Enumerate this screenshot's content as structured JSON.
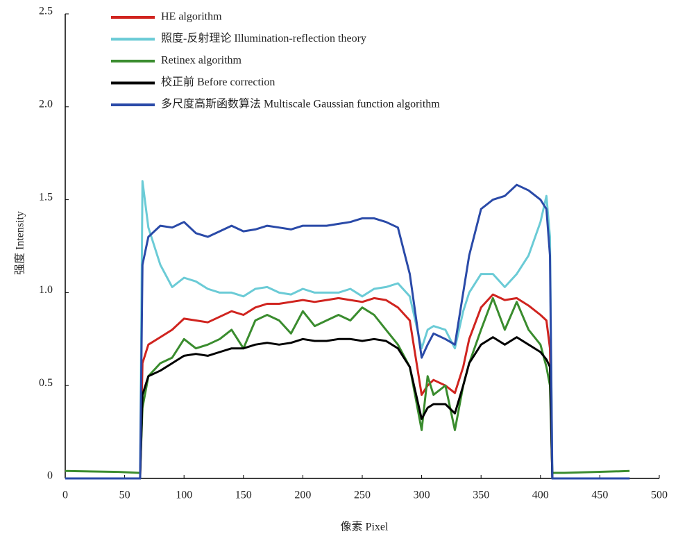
{
  "chart_data": {
    "type": "line",
    "xlabel": "像素 Pixel",
    "ylabel": "强度 Intensity",
    "x": [
      0,
      45,
      62,
      63,
      65,
      70,
      80,
      90,
      100,
      110,
      120,
      130,
      140,
      150,
      160,
      170,
      180,
      190,
      200,
      210,
      220,
      230,
      240,
      250,
      260,
      270,
      280,
      290,
      300,
      305,
      310,
      320,
      328,
      335,
      340,
      350,
      360,
      370,
      380,
      390,
      400,
      405,
      408,
      410,
      420,
      475
    ],
    "series": [
      {
        "name": "HE algorithm",
        "color": "#d0241f",
        "values": [
          0,
          0,
          0,
          0,
          0.62,
          0.72,
          0.76,
          0.8,
          0.86,
          0.85,
          0.84,
          0.87,
          0.9,
          0.88,
          0.92,
          0.94,
          0.94,
          0.95,
          0.96,
          0.95,
          0.96,
          0.97,
          0.96,
          0.95,
          0.97,
          0.96,
          0.92,
          0.85,
          0.45,
          0.5,
          0.53,
          0.5,
          0.46,
          0.6,
          0.75,
          0.92,
          0.99,
          0.96,
          0.97,
          0.93,
          0.88,
          0.85,
          0.7,
          0,
          0,
          0
        ]
      },
      {
        "name": "照度-反射理论 Illumination-reflection theory",
        "color": "#6bcbd6",
        "values": [
          0,
          0,
          0,
          0,
          1.6,
          1.35,
          1.15,
          1.03,
          1.08,
          1.06,
          1.02,
          1.0,
          1.0,
          0.98,
          1.02,
          1.03,
          1.0,
          0.99,
          1.02,
          1.0,
          1.0,
          1.0,
          1.02,
          0.98,
          1.02,
          1.03,
          1.05,
          0.98,
          0.7,
          0.8,
          0.82,
          0.8,
          0.7,
          0.9,
          1.0,
          1.1,
          1.1,
          1.03,
          1.1,
          1.2,
          1.38,
          1.52,
          1.3,
          0,
          0,
          0
        ]
      },
      {
        "name": "Retinex algorithm",
        "color": "#3a8c2e",
        "values": [
          0.04,
          0.035,
          0.03,
          0.03,
          0.38,
          0.55,
          0.62,
          0.65,
          0.75,
          0.7,
          0.72,
          0.75,
          0.8,
          0.7,
          0.85,
          0.88,
          0.85,
          0.78,
          0.9,
          0.82,
          0.85,
          0.88,
          0.85,
          0.92,
          0.88,
          0.8,
          0.72,
          0.6,
          0.26,
          0.55,
          0.45,
          0.5,
          0.26,
          0.5,
          0.62,
          0.8,
          0.97,
          0.8,
          0.95,
          0.8,
          0.72,
          0.6,
          0.5,
          0.03,
          0.03,
          0.04
        ]
      },
      {
        "name": "校正前 Before correction",
        "color": "#000000",
        "values": [
          0,
          0,
          0,
          0,
          0.45,
          0.55,
          0.58,
          0.62,
          0.66,
          0.67,
          0.66,
          0.68,
          0.7,
          0.7,
          0.72,
          0.73,
          0.72,
          0.73,
          0.75,
          0.74,
          0.74,
          0.75,
          0.75,
          0.74,
          0.75,
          0.74,
          0.7,
          0.6,
          0.32,
          0.38,
          0.4,
          0.4,
          0.35,
          0.5,
          0.62,
          0.72,
          0.76,
          0.72,
          0.76,
          0.72,
          0.68,
          0.64,
          0.6,
          0,
          0,
          0
        ]
      },
      {
        "name": "多尺度高斯函数算法 Multiscale Gaussian function algorithm",
        "color": "#2a4aa8",
        "values": [
          0,
          0,
          0,
          0,
          1.15,
          1.3,
          1.36,
          1.35,
          1.38,
          1.32,
          1.3,
          1.33,
          1.36,
          1.33,
          1.34,
          1.36,
          1.35,
          1.34,
          1.36,
          1.36,
          1.36,
          1.37,
          1.38,
          1.4,
          1.4,
          1.38,
          1.35,
          1.1,
          0.65,
          0.72,
          0.78,
          0.75,
          0.72,
          1.0,
          1.2,
          1.45,
          1.5,
          1.52,
          1.58,
          1.55,
          1.5,
          1.45,
          1.2,
          0,
          0,
          0
        ]
      }
    ],
    "xlim": [
      0,
      500
    ],
    "xticks": [
      0,
      50,
      100,
      150,
      200,
      250,
      300,
      350,
      400,
      450,
      500
    ],
    "ylim": [
      0,
      2.5
    ],
    "yticks": [
      0,
      0.5,
      {
        "value": 1,
        "label": "1.0"
      },
      1.5,
      {
        "value": 2,
        "label": "2.0"
      },
      2.5
    ],
    "legend": "top-left"
  }
}
